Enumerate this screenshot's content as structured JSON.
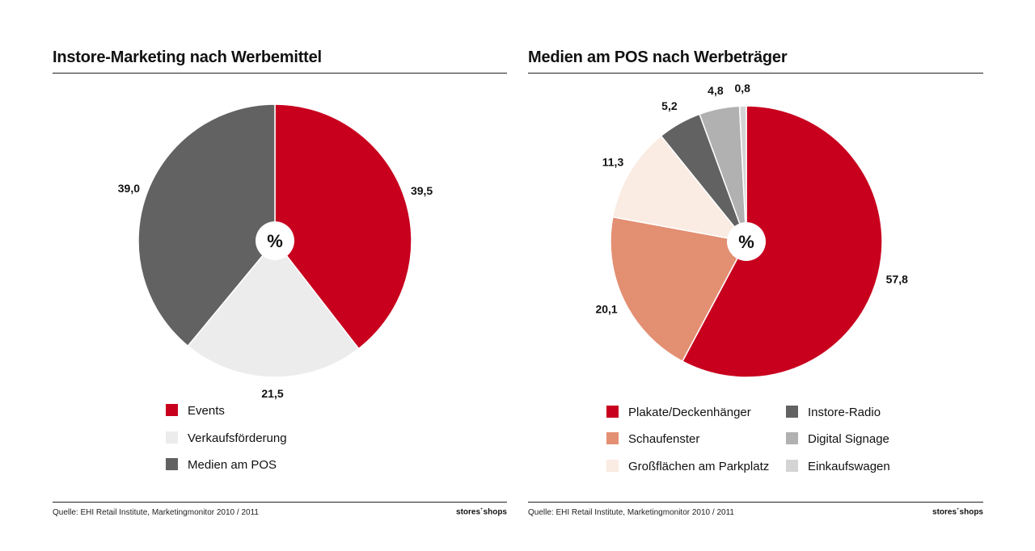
{
  "chart_data": [
    {
      "type": "pie",
      "title": "Instore-Marketing nach Werbemittel",
      "center_label": "%",
      "slices": [
        {
          "name": "Events",
          "value": 39.5,
          "label": "39,5",
          "color": "#c8001e"
        },
        {
          "name": "Verkaufsförderung",
          "value": 21.5,
          "label": "21,5",
          "color": "#ececec"
        },
        {
          "name": "Medien am POS",
          "value": 39.0,
          "label": "39,0",
          "color": "#626262"
        }
      ],
      "legend": [
        "Events",
        "Verkaufsförderung",
        "Medien am POS"
      ]
    },
    {
      "type": "pie",
      "title": "Medien am POS nach Werbeträger",
      "center_label": "%",
      "slices": [
        {
          "name": "Plakate/Deckenhänger",
          "value": 57.8,
          "label": "57,8",
          "color": "#c8001e"
        },
        {
          "name": "Schaufenster",
          "value": 20.1,
          "label": "20,1",
          "color": "#e38f72"
        },
        {
          "name": "Großflächen am Parkplatz",
          "value": 11.3,
          "label": "11,3",
          "color": "#faebe3"
        },
        {
          "name": "Instore-Radio",
          "value": 5.2,
          "label": "5,2",
          "color": "#626262"
        },
        {
          "name": "Digital Signage",
          "value": 4.8,
          "label": "4,8",
          "color": "#b1b1b1"
        },
        {
          "name": "Einkaufswagen",
          "value": 0.8,
          "label": "0,8",
          "color": "#d4d4d4"
        }
      ],
      "legend": [
        "Plakate/Deckenhänger",
        "Schaufenster",
        "Großflächen am Parkplatz",
        "Instore-Radio",
        "Digital Signage",
        "Einkaufswagen"
      ]
    }
  ],
  "footer": {
    "source": "Quelle: EHI Retail Institute, Marketingmonitor 2010 / 2011",
    "brand_left": "stores",
    "brand_symbol": "+",
    "brand_right": "shops"
  }
}
